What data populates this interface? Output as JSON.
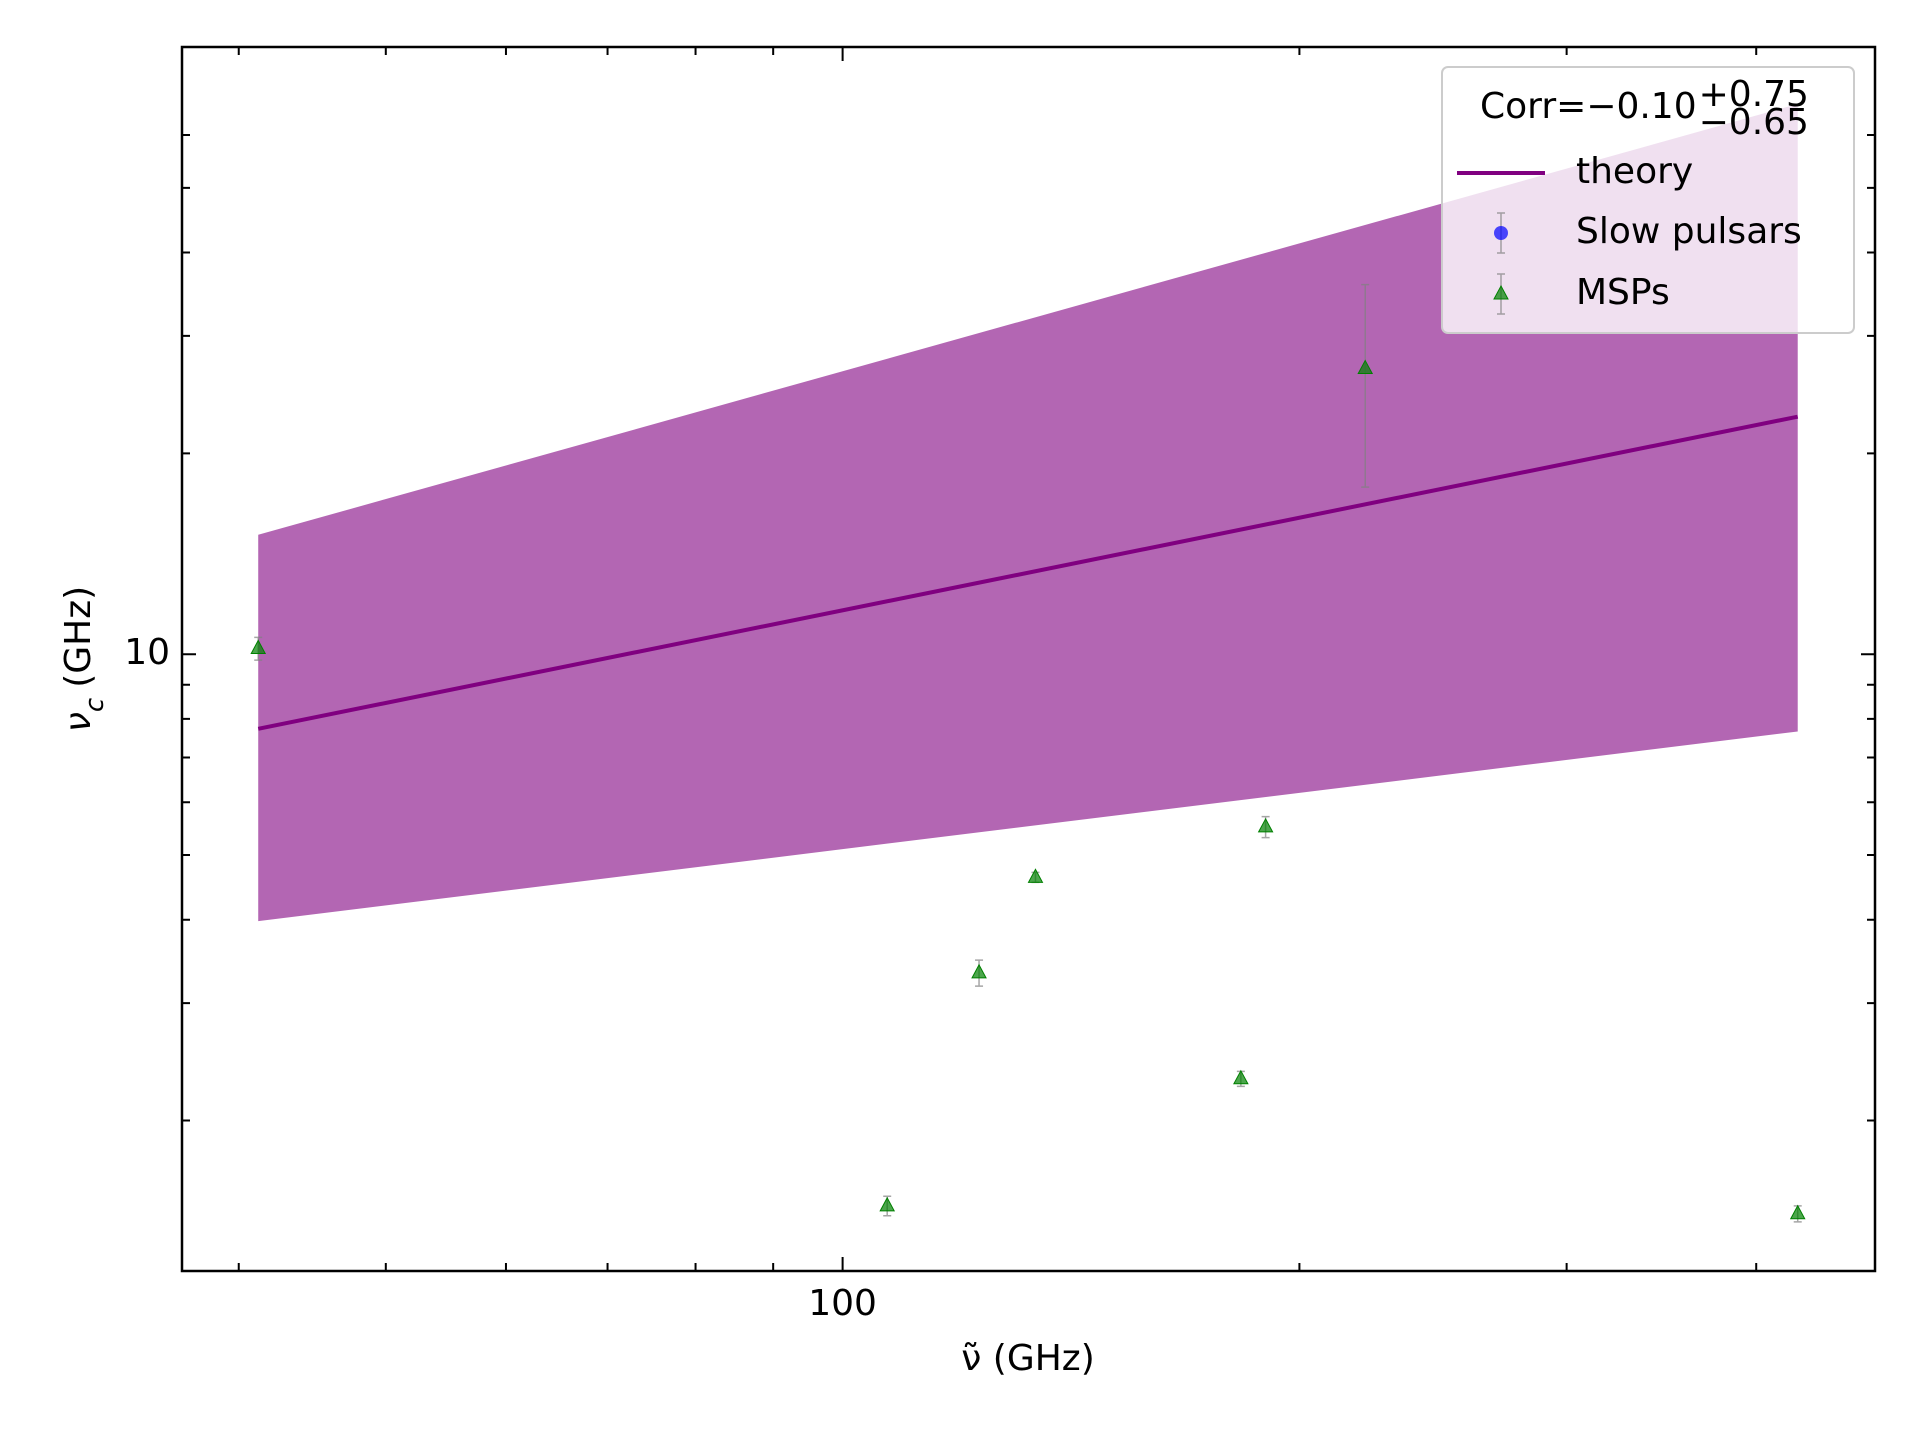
{
  "chart_data": {
    "type": "scatter",
    "x_label": "ν̃ (GHz)",
    "y_label": {
      "symbol": "ν",
      "subscript": "c",
      "unit": "(GHz)"
    },
    "xscale": "log",
    "yscale": "log",
    "xlim": [
      36.7,
      479
    ],
    "ylim": [
      1.19,
      81.3
    ],
    "xticks": [
      100
    ],
    "yticks": [
      10
    ],
    "xminorticks": [
      40,
      50,
      60,
      70,
      80,
      90,
      200,
      300,
      400
    ],
    "yminorticks": [
      2,
      3,
      4,
      5,
      6,
      7,
      8,
      9,
      20,
      30,
      40,
      50,
      60
    ],
    "band": {
      "color": "purple",
      "opacity": 0.6,
      "x": [
        41.2,
        426
      ],
      "lower": [
        3.98,
        7.66
      ],
      "upper": [
        15.1,
        66.8
      ]
    },
    "legend": {
      "location": "upper right",
      "title": {
        "text": "Corr=−0.10",
        "sup": "+0.75",
        "sub": "−0.65"
      }
    },
    "series": [
      {
        "name": "theory",
        "kind": "line",
        "color": "purple",
        "x": [
          41.2,
          426
        ],
        "values": [
          7.73,
          22.7
        ]
      },
      {
        "name": "Slow pulsars",
        "kind": "points",
        "marker": "circle",
        "color": "blue",
        "x": [],
        "values": [],
        "errors": []
      },
      {
        "name": "MSPs",
        "kind": "points",
        "marker": "triangle",
        "color": "green",
        "x": [
          41.2,
          107,
          123,
          134,
          183,
          190,
          221,
          426
        ],
        "values": [
          10.2,
          1.49,
          3.33,
          4.63,
          2.31,
          5.51,
          26.8,
          1.45
        ],
        "errors": [
          0.4,
          0.05,
          0.15,
          0.08,
          0.06,
          0.2,
          9,
          0.04
        ]
      }
    ]
  }
}
